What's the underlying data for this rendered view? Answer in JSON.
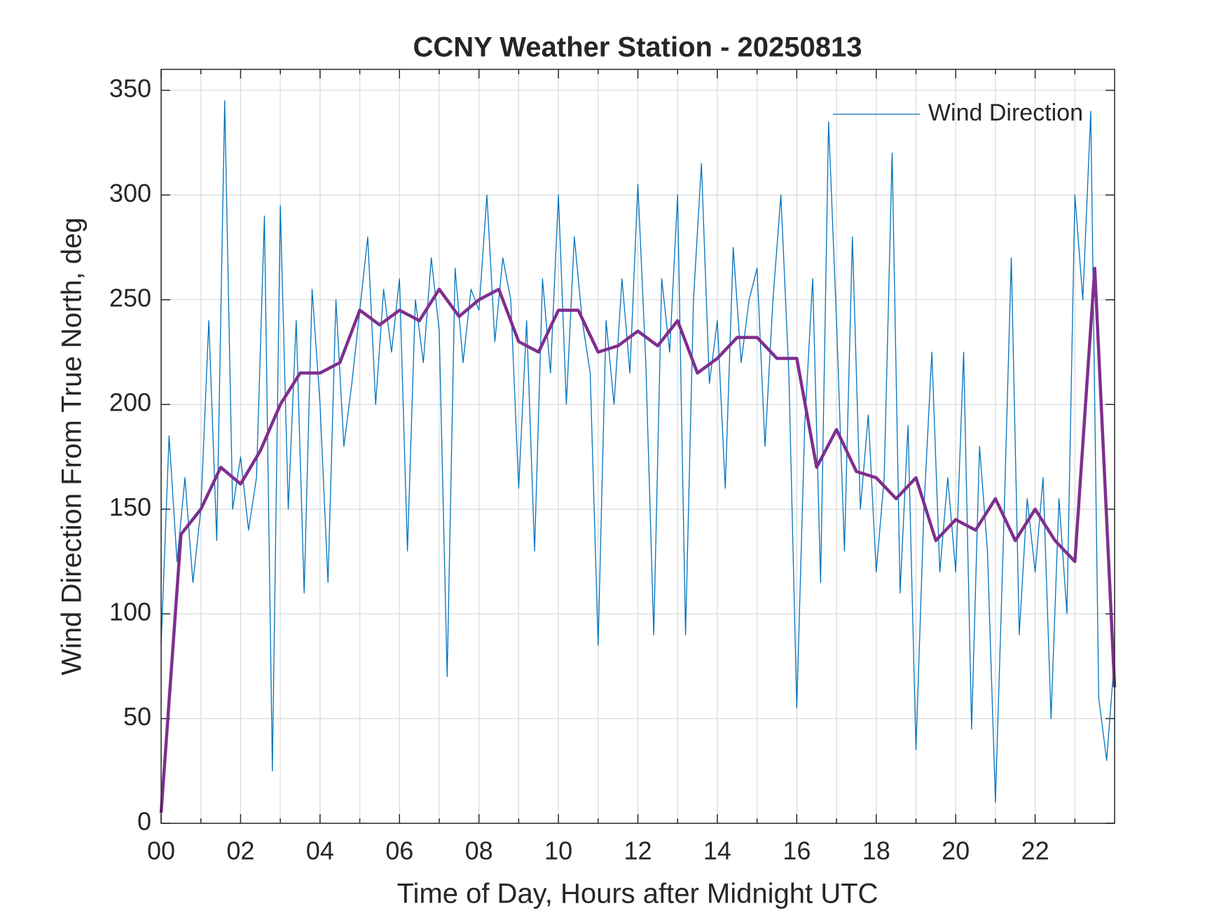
{
  "chart_data": {
    "type": "line",
    "title": "CCNY Weather Station - 20250813",
    "xlabel": "Time of Day, Hours after Midnight UTC",
    "ylabel": "Wind Direction From True North, deg",
    "xlim": [
      0,
      24
    ],
    "ylim": [
      0,
      360
    ],
    "xticks": [
      {
        "value": 0,
        "label": "00"
      },
      {
        "value": 2,
        "label": "02"
      },
      {
        "value": 4,
        "label": "04"
      },
      {
        "value": 6,
        "label": "06"
      },
      {
        "value": 8,
        "label": "08"
      },
      {
        "value": 10,
        "label": "10"
      },
      {
        "value": 12,
        "label": "12"
      },
      {
        "value": 14,
        "label": "14"
      },
      {
        "value": 16,
        "label": "16"
      },
      {
        "value": 18,
        "label": "18"
      },
      {
        "value": 20,
        "label": "20"
      },
      {
        "value": 22,
        "label": "22"
      }
    ],
    "xminorticks": [
      1,
      3,
      5,
      7,
      9,
      11,
      13,
      15,
      17,
      19,
      21,
      23
    ],
    "yticks": [
      0,
      50,
      100,
      150,
      200,
      250,
      300,
      350
    ],
    "grid": true,
    "legend": "northeast",
    "series": [
      {
        "name": "Wind Direction",
        "color": "#0072bd",
        "width": 1.3,
        "x": [
          0,
          0.2,
          0.4,
          0.6,
          0.8,
          1,
          1.2,
          1.4,
          1.6,
          1.8,
          2,
          2.2,
          2.4,
          2.6,
          2.8,
          3,
          3.2,
          3.4,
          3.6,
          3.8,
          4,
          4.2,
          4.4,
          4.6,
          4.8,
          5,
          5.2,
          5.4,
          5.6,
          5.8,
          6,
          6.2,
          6.4,
          6.6,
          6.8,
          7,
          7.2,
          7.4,
          7.6,
          7.8,
          8,
          8.2,
          8.4,
          8.6,
          8.8,
          9,
          9.2,
          9.4,
          9.6,
          9.8,
          10,
          10.2,
          10.4,
          10.6,
          10.8,
          11,
          11.2,
          11.4,
          11.6,
          11.8,
          12,
          12.2,
          12.4,
          12.6,
          12.8,
          13,
          13.2,
          13.4,
          13.6,
          13.8,
          14,
          14.2,
          14.4,
          14.6,
          14.8,
          15,
          15.2,
          15.4,
          15.6,
          15.8,
          16,
          16.2,
          16.4,
          16.6,
          16.8,
          17,
          17.2,
          17.4,
          17.6,
          17.8,
          18,
          18.2,
          18.4,
          18.6,
          18.8,
          19,
          19.2,
          19.4,
          19.6,
          19.8,
          20,
          20.2,
          20.4,
          20.6,
          20.8,
          21,
          21.2,
          21.4,
          21.6,
          21.8,
          22,
          22.2,
          22.4,
          22.6,
          22.8,
          23,
          23.2,
          23.4,
          23.6,
          23.8,
          24
        ],
        "values": [
          85,
          185,
          125,
          165,
          115,
          150,
          240,
          135,
          345,
          150,
          175,
          140,
          165,
          290,
          25,
          295,
          150,
          240,
          110,
          255,
          200,
          115,
          250,
          180,
          210,
          245,
          280,
          200,
          255,
          225,
          260,
          130,
          250,
          220,
          270,
          235,
          70,
          265,
          220,
          255,
          245,
          300,
          230,
          270,
          250,
          160,
          240,
          130,
          260,
          215,
          300,
          200,
          280,
          240,
          215,
          85,
          240,
          200,
          260,
          215,
          305,
          220,
          90,
          260,
          225,
          300,
          90,
          250,
          315,
          210,
          240,
          160,
          275,
          220,
          250,
          265,
          180,
          250,
          300,
          215,
          55,
          190,
          260,
          115,
          335,
          240,
          130,
          280,
          150,
          195,
          120,
          165,
          320,
          110,
          190,
          35,
          150,
          225,
          120,
          165,
          120,
          225,
          45,
          180,
          130,
          10,
          135,
          270,
          90,
          155,
          120,
          165,
          50,
          155,
          100,
          300,
          250,
          340,
          60,
          30,
          80
        ]
      },
      {
        "color": "#7e2f8e",
        "width": 4.5,
        "x": [
          0,
          0.5,
          1,
          1.5,
          2,
          2.5,
          3,
          3.5,
          4,
          4.5,
          5,
          5.5,
          6,
          6.5,
          7,
          7.5,
          8,
          8.5,
          9,
          9.5,
          10,
          10.5,
          11,
          11.5,
          12,
          12.5,
          13,
          13.5,
          14,
          14.5,
          15,
          15.5,
          16,
          16.5,
          17,
          17.5,
          18,
          18.5,
          19,
          19.5,
          20,
          20.5,
          21,
          21.5,
          22,
          22.5,
          23,
          23.5,
          24
        ],
        "values": [
          5,
          138,
          150,
          170,
          162,
          178,
          200,
          215,
          215,
          220,
          245,
          238,
          245,
          240,
          255,
          242,
          250,
          255,
          230,
          225,
          245,
          245,
          225,
          228,
          235,
          228,
          240,
          215,
          222,
          232,
          232,
          222,
          222,
          170,
          188,
          168,
          165,
          155,
          165,
          135,
          145,
          140,
          155,
          135,
          150,
          135,
          125,
          265,
          65
        ]
      }
    ]
  }
}
